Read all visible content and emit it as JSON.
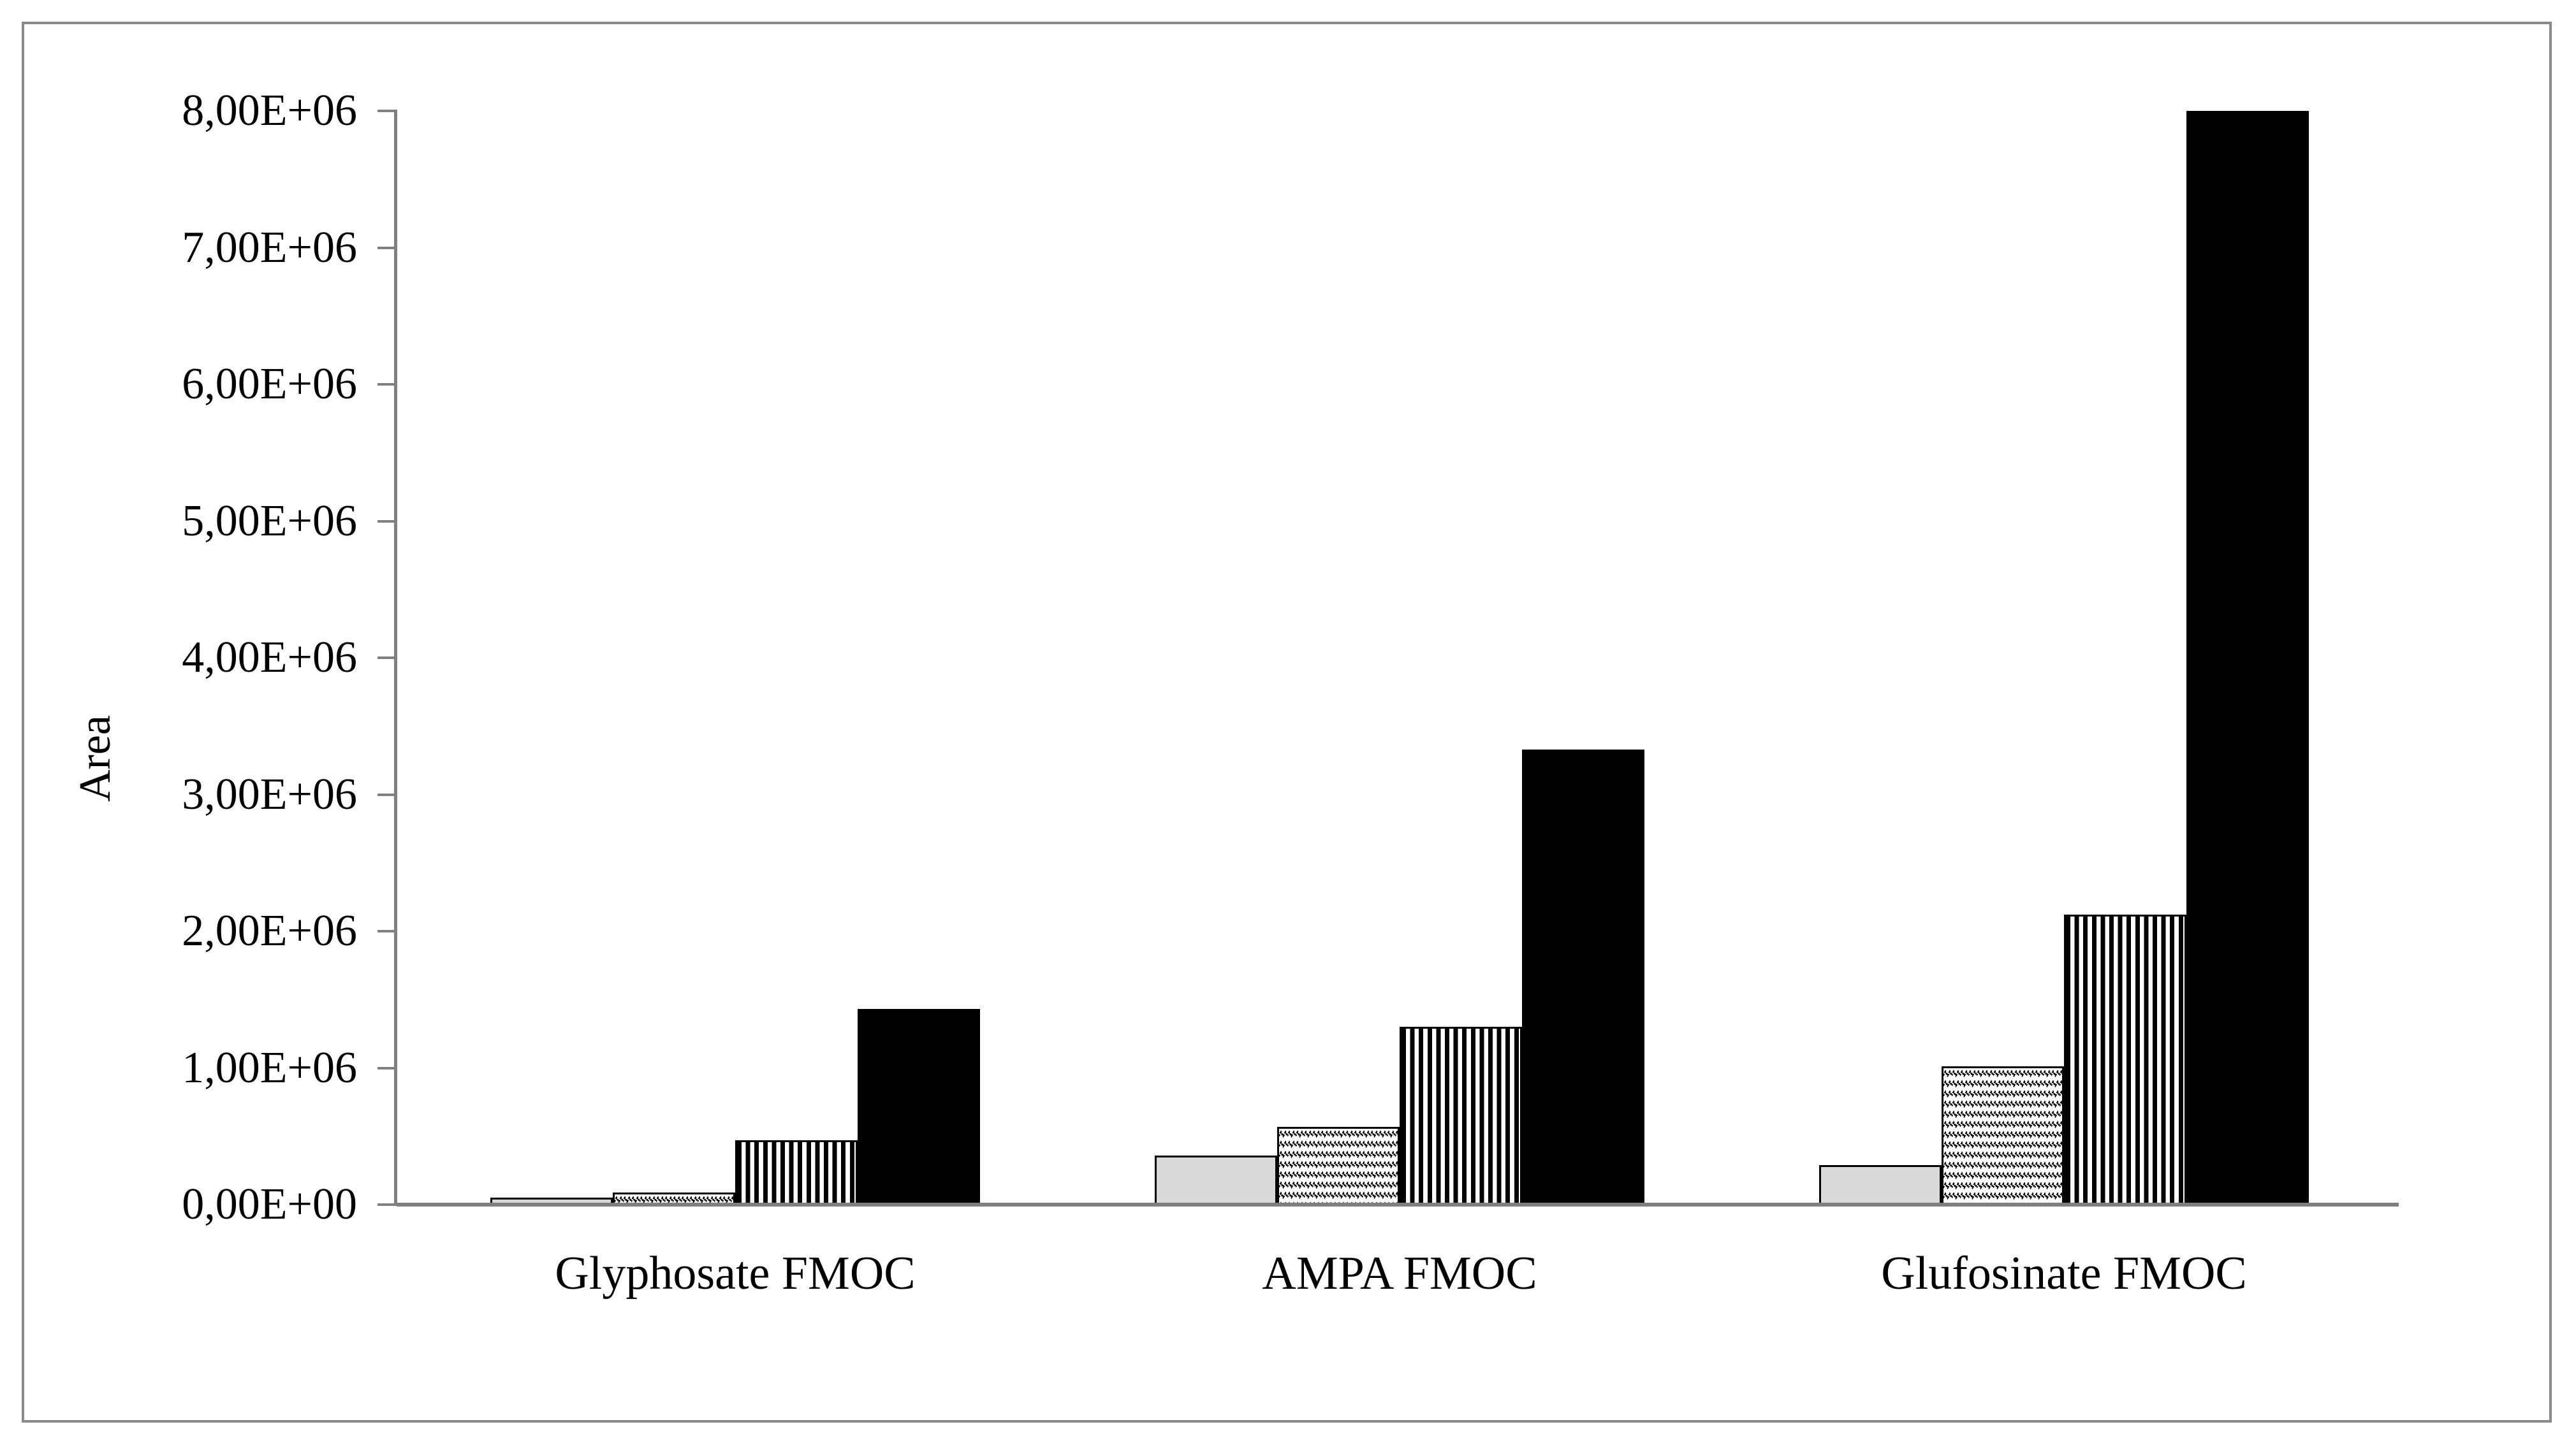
{
  "window": {
    "background": "#ffffff",
    "frame_border_color": "#8a8a8a"
  },
  "chart_data": {
    "type": "bar",
    "title": "",
    "xlabel": "",
    "ylabel": "Area",
    "categories": [
      "Glyphosate FMOC",
      "AMPA FMOC",
      "Glufosinate FMOC"
    ],
    "series": [
      {
        "name": "series 1 (light gray fill)",
        "fill": "light-gray",
        "values": [
          50000,
          360000,
          290000
        ]
      },
      {
        "name": "series 2 (dashed zigzag pattern)",
        "fill": "zigzag",
        "values": [
          90000,
          570000,
          1010000
        ]
      },
      {
        "name": "series 3 (vertical stripes)",
        "fill": "vertical-stripes",
        "values": [
          470000,
          1300000,
          2120000
        ]
      },
      {
        "name": "series 4 (solid black)",
        "fill": "solid-black",
        "values": [
          1430000,
          3330000,
          8000000
        ]
      }
    ],
    "y_axis": {
      "min": 0,
      "max": 8000000,
      "tick_step": 1000000,
      "tick_labels": [
        "0,00E+00",
        "1,00E+06",
        "2,00E+06",
        "3,00E+06",
        "4,00E+06",
        "5,00E+06",
        "6,00E+06",
        "7,00E+06",
        "8,00E+06"
      ]
    },
    "legend": "none",
    "grid": false,
    "colors": {
      "bar_gray": "#d9d9d9",
      "bar_black": "#000000",
      "axis_gray": "#808080",
      "bar_outline": "#000000"
    }
  }
}
